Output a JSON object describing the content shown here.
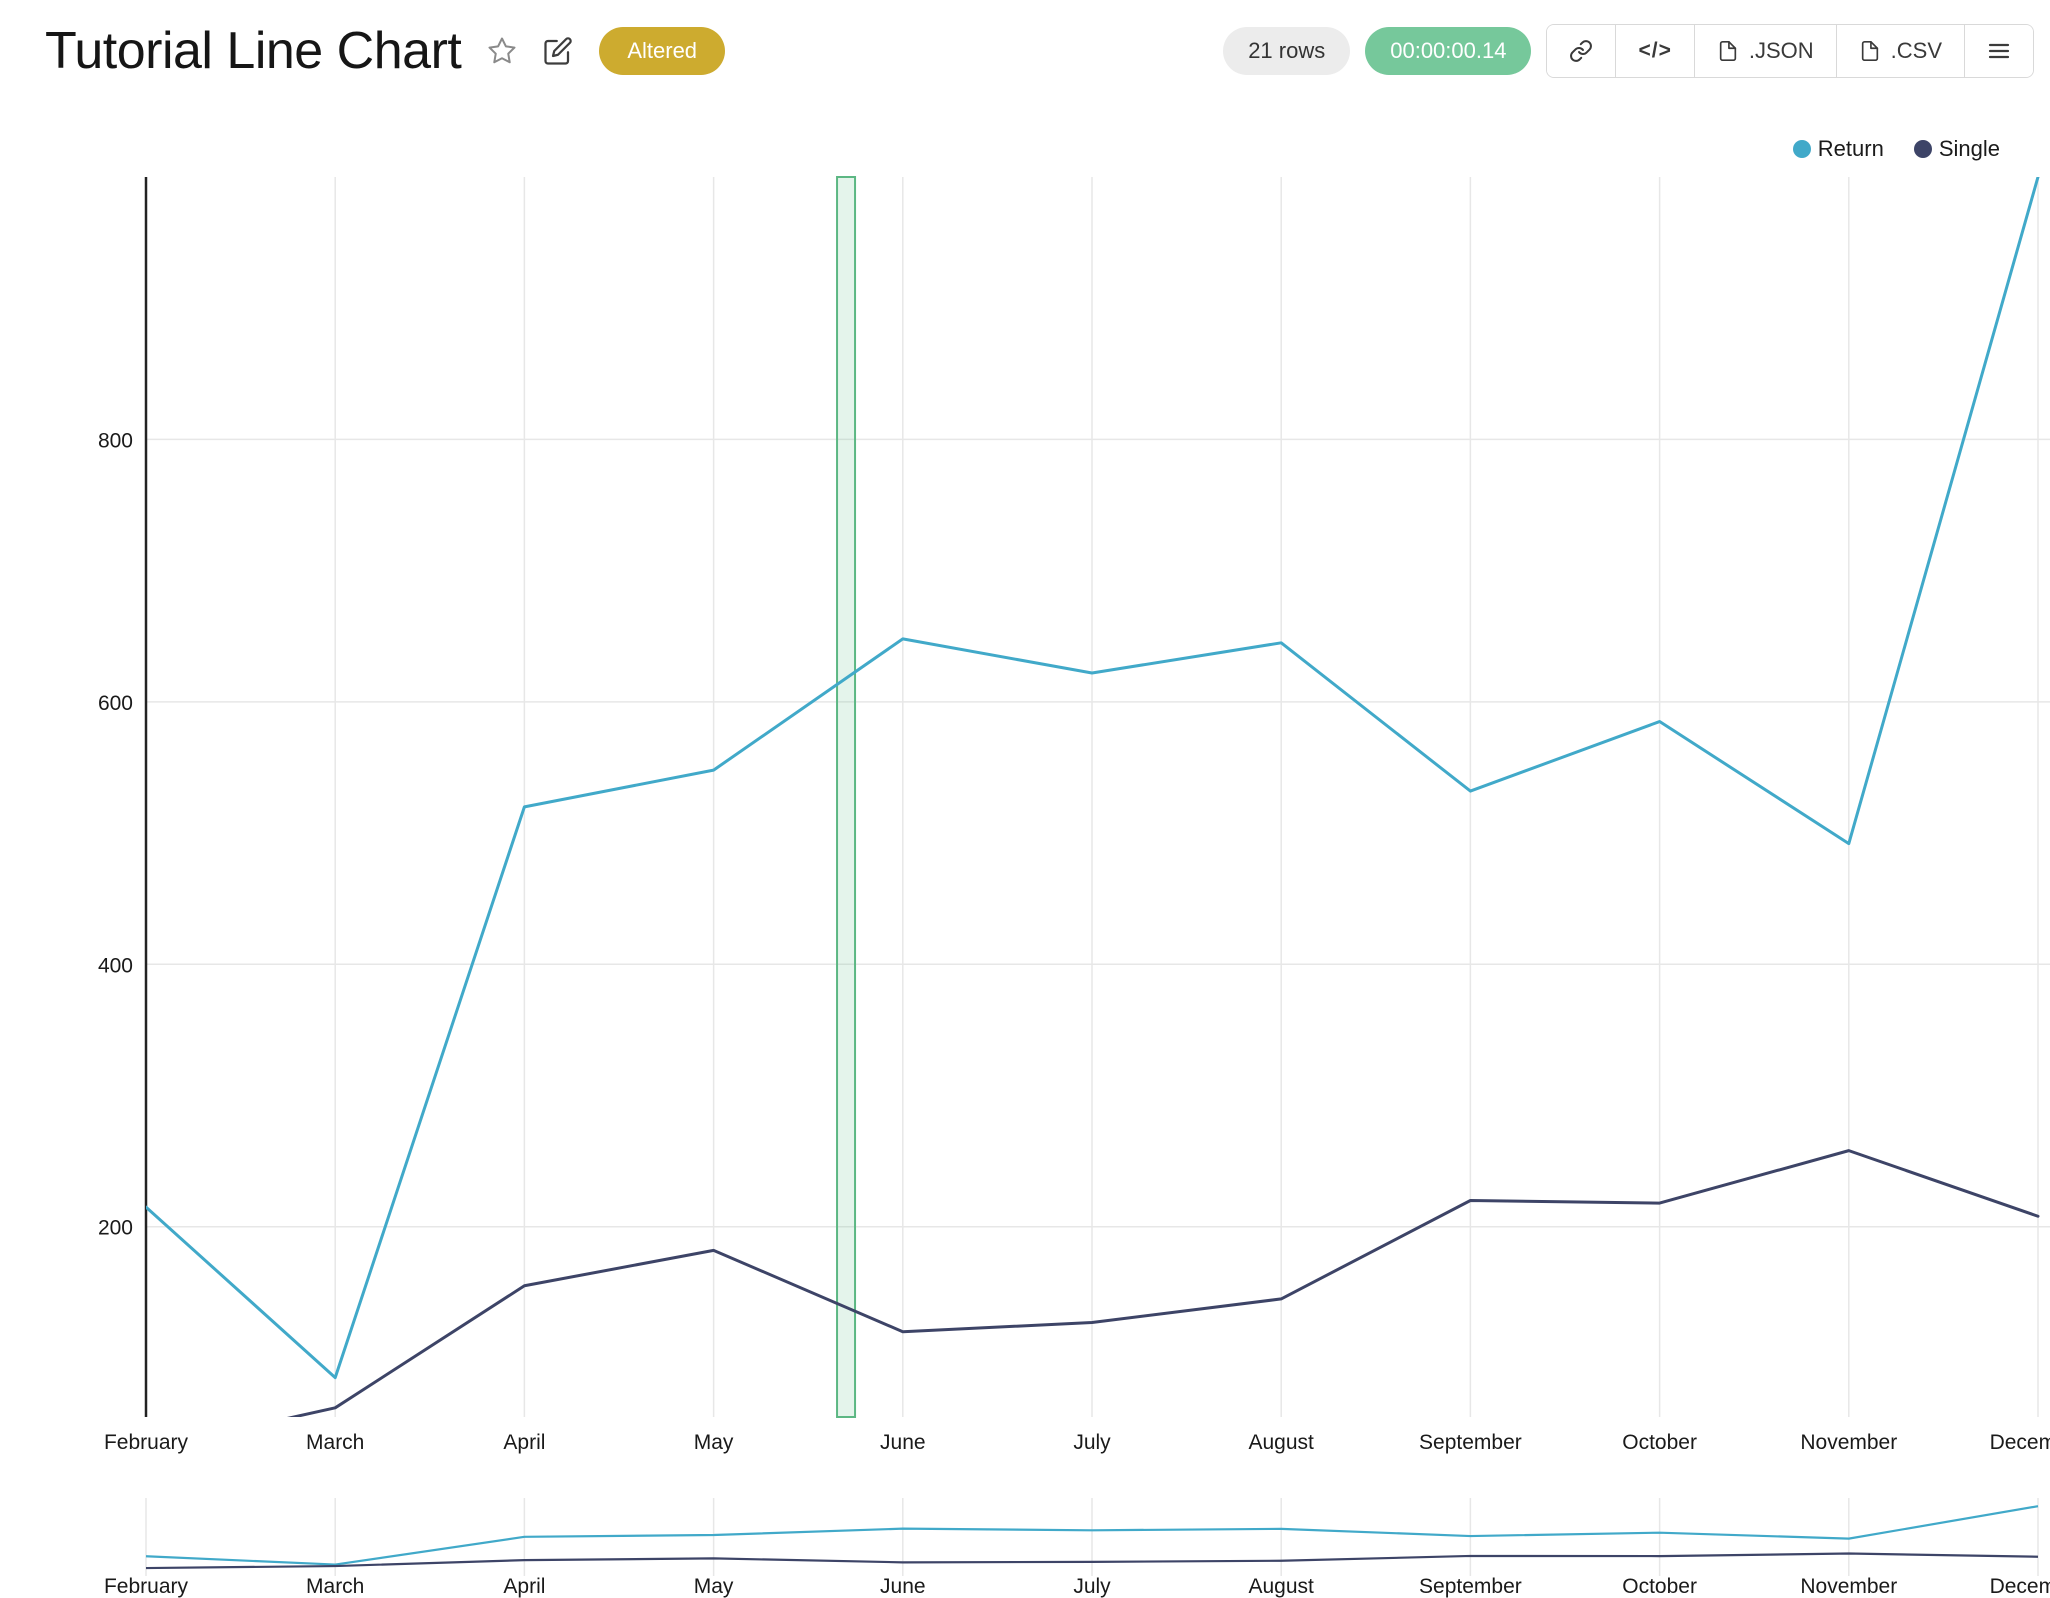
{
  "header": {
    "title": "Tutorial Line Chart",
    "altered_badge": "Altered",
    "rows_count": "21 rows",
    "timer": "00:00:00.14",
    "code_button": "</>",
    "json_button": ".JSON",
    "csv_button": ".CSV"
  },
  "icons": {
    "favorite": "star-outline",
    "edit": "pencil-square",
    "share": "chain-link",
    "embed": "</>",
    "json_file": "document",
    "csv_file": "document",
    "menu": "hamburger"
  },
  "colors": {
    "altered_badge_bg": "#cdab2f",
    "timer_badge_bg": "#76c89b",
    "rows_badge_bg": "#ececec",
    "grid": "#e7e7e7",
    "axis": "#222222",
    "highlight_green": "#5cb783",
    "highlight_fill": "rgba(122,200,155,0.20)",
    "return_series": "#41a9c9",
    "single_series": "#3d4467"
  },
  "chart_data": {
    "type": "line",
    "title": "Tutorial Line Chart",
    "x": [
      "February",
      "March",
      "April",
      "May",
      "June",
      "July",
      "August",
      "September",
      "October",
      "November",
      "December"
    ],
    "series": [
      {
        "name": "Return",
        "color": "#41a9c9",
        "values": [
          215,
          85,
          520,
          548,
          648,
          622,
          645,
          532,
          585,
          492,
          1000
        ]
      },
      {
        "name": "Single",
        "color": "#3d4467",
        "values": [
          30,
          62,
          155,
          182,
          120,
          127,
          145,
          220,
          218,
          258,
          208
        ]
      }
    ],
    "ylim": [
      55,
      1000
    ],
    "yticks": [
      200,
      400,
      600,
      800
    ],
    "grid": true,
    "legend_position": "top-right",
    "highlight_x_index": 3.7,
    "minimap_ylim": [
      0,
      1050
    ]
  }
}
